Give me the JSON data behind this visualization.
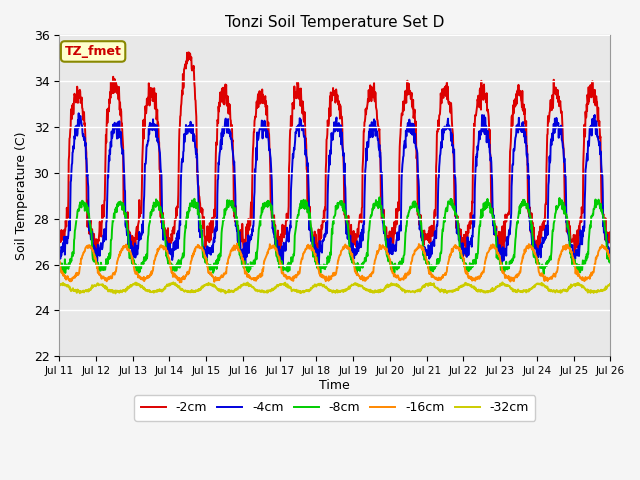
{
  "title": "Tonzi Soil Temperature Set D",
  "xlabel": "Time",
  "ylabel": "Soil Temperature (C)",
  "ylim": [
    22,
    36
  ],
  "annotation": "TZ_fmet",
  "legend_labels": [
    "-2cm",
    "-4cm",
    "-8cm",
    "-16cm",
    "-32cm"
  ],
  "line_colors": [
    "#dd0000",
    "#0000dd",
    "#00cc00",
    "#ff8800",
    "#cccc00"
  ],
  "plot_bg": "#e8e8e8",
  "fig_bg": "#f5f5f5",
  "n_days": 15,
  "start_day": 11,
  "base": [
    28.5,
    27.8,
    26.5,
    25.7,
    24.9
  ],
  "amp": [
    5.0,
    4.3,
    2.2,
    1.1,
    0.25
  ],
  "phase": [
    0.0,
    0.05,
    0.15,
    0.3,
    0.58
  ],
  "sharpness": [
    3.0,
    2.5,
    2.0,
    1.5,
    1.2
  ]
}
